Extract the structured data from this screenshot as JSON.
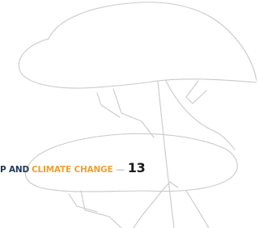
{
  "header": {
    "prefix": "P AND",
    "highlight": "CLIMATE CHANGE",
    "separator": "—",
    "page_number": "13"
  }
}
